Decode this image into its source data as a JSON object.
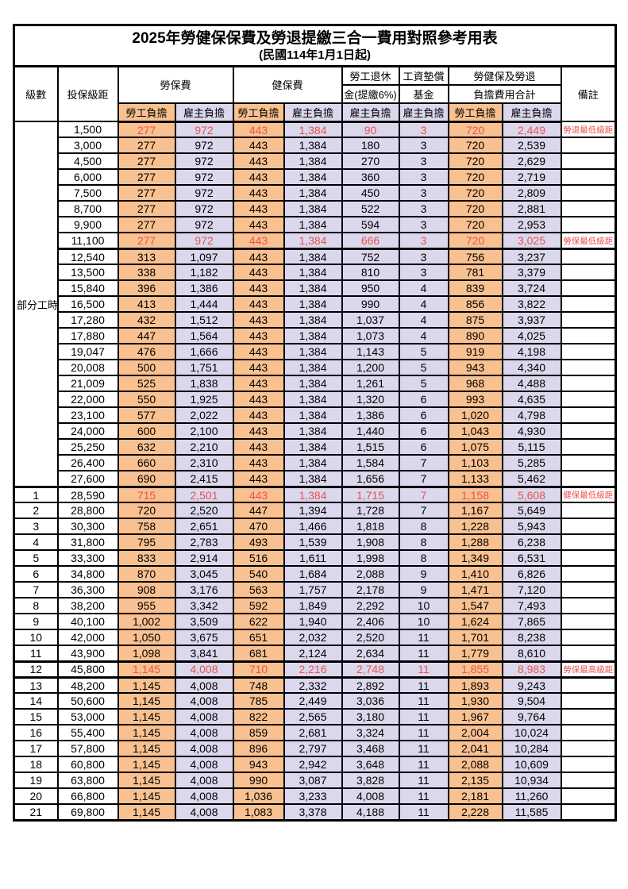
{
  "title": "2025年勞健保保費及勞退提繳三合一費用對照參考用表",
  "subtitle": "(民國114年1月1日起)",
  "header": {
    "level": "級數",
    "bracket": "投保級距",
    "labor_insurance": "勞保費",
    "health_insurance": "健保費",
    "pension_line1": "勞工退休",
    "pension_line2": "金(提繳6%)",
    "wage_fund_line1": "工資墊償",
    "wage_fund_line2": "基金",
    "total_line1": "勞健保及勞退",
    "total_line2": "負擔費用合計",
    "remark": "備註",
    "employee_share": "勞工負擔",
    "employer_share": "雇主負擔"
  },
  "part_time_label": "部分工時",
  "colors": {
    "employee_bg": "#FAC190",
    "employer_bg": "#DBD8ED",
    "highlight_text": "#E8524F",
    "border": "#000000"
  },
  "rows": [
    {
      "lv": "",
      "amt": "1,500",
      "v": [
        "277",
        "972",
        "443",
        "1,384",
        "90",
        "3",
        "720",
        "2,449"
      ],
      "rm": "勞退最低級距",
      "hl": true
    },
    {
      "lv": "",
      "amt": "3,000",
      "v": [
        "277",
        "972",
        "443",
        "1,384",
        "180",
        "3",
        "720",
        "2,539"
      ],
      "rm": ""
    },
    {
      "lv": "",
      "amt": "4,500",
      "v": [
        "277",
        "972",
        "443",
        "1,384",
        "270",
        "3",
        "720",
        "2,629"
      ],
      "rm": ""
    },
    {
      "lv": "",
      "amt": "6,000",
      "v": [
        "277",
        "972",
        "443",
        "1,384",
        "360",
        "3",
        "720",
        "2,719"
      ],
      "rm": ""
    },
    {
      "lv": "",
      "amt": "7,500",
      "v": [
        "277",
        "972",
        "443",
        "1,384",
        "450",
        "3",
        "720",
        "2,809"
      ],
      "rm": ""
    },
    {
      "lv": "",
      "amt": "8,700",
      "v": [
        "277",
        "972",
        "443",
        "1,384",
        "522",
        "3",
        "720",
        "2,881"
      ],
      "rm": ""
    },
    {
      "lv": "",
      "amt": "9,900",
      "v": [
        "277",
        "972",
        "443",
        "1,384",
        "594",
        "3",
        "720",
        "2,953"
      ],
      "rm": ""
    },
    {
      "lv": "",
      "amt": "11,100",
      "v": [
        "277",
        "972",
        "443",
        "1,384",
        "666",
        "3",
        "720",
        "3,025"
      ],
      "rm": "勞保最低級距",
      "hl": true,
      "tb": true
    },
    {
      "lv": "",
      "amt": "12,540",
      "v": [
        "313",
        "1,097",
        "443",
        "1,384",
        "752",
        "3",
        "756",
        "3,237"
      ],
      "rm": ""
    },
    {
      "lv": "",
      "amt": "13,500",
      "v": [
        "338",
        "1,182",
        "443",
        "1,384",
        "810",
        "3",
        "781",
        "3,379"
      ],
      "rm": ""
    },
    {
      "lv": "",
      "amt": "15,840",
      "v": [
        "396",
        "1,386",
        "443",
        "1,384",
        "950",
        "4",
        "839",
        "3,724"
      ],
      "rm": ""
    },
    {
      "lv": "",
      "amt": "16,500",
      "v": [
        "413",
        "1,444",
        "443",
        "1,384",
        "990",
        "4",
        "856",
        "3,822"
      ],
      "rm": ""
    },
    {
      "lv": "",
      "amt": "17,280",
      "v": [
        "432",
        "1,512",
        "443",
        "1,384",
        "1,037",
        "4",
        "875",
        "3,937"
      ],
      "rm": ""
    },
    {
      "lv": "",
      "amt": "17,880",
      "v": [
        "447",
        "1,564",
        "443",
        "1,384",
        "1,073",
        "4",
        "890",
        "4,025"
      ],
      "rm": ""
    },
    {
      "lv": "",
      "amt": "19,047",
      "v": [
        "476",
        "1,666",
        "443",
        "1,384",
        "1,143",
        "5",
        "919",
        "4,198"
      ],
      "rm": ""
    },
    {
      "lv": "",
      "amt": "20,008",
      "v": [
        "500",
        "1,751",
        "443",
        "1,384",
        "1,200",
        "5",
        "943",
        "4,340"
      ],
      "rm": ""
    },
    {
      "lv": "",
      "amt": "21,009",
      "v": [
        "525",
        "1,838",
        "443",
        "1,384",
        "1,261",
        "5",
        "968",
        "4,488"
      ],
      "rm": ""
    },
    {
      "lv": "",
      "amt": "22,000",
      "v": [
        "550",
        "1,925",
        "443",
        "1,384",
        "1,320",
        "6",
        "993",
        "4,635"
      ],
      "rm": ""
    },
    {
      "lv": "",
      "amt": "23,100",
      "v": [
        "577",
        "2,022",
        "443",
        "1,384",
        "1,386",
        "6",
        "1,020",
        "4,798"
      ],
      "rm": ""
    },
    {
      "lv": "",
      "amt": "24,000",
      "v": [
        "600",
        "2,100",
        "443",
        "1,384",
        "1,440",
        "6",
        "1,043",
        "4,930"
      ],
      "rm": ""
    },
    {
      "lv": "",
      "amt": "25,250",
      "v": [
        "632",
        "2,210",
        "443",
        "1,384",
        "1,515",
        "6",
        "1,075",
        "5,115"
      ],
      "rm": ""
    },
    {
      "lv": "",
      "amt": "26,400",
      "v": [
        "660",
        "2,310",
        "443",
        "1,384",
        "1,584",
        "7",
        "1,103",
        "5,285"
      ],
      "rm": ""
    },
    {
      "lv": "",
      "amt": "27,600",
      "v": [
        "690",
        "2,415",
        "443",
        "1,384",
        "1,656",
        "7",
        "1,133",
        "5,462"
      ],
      "rm": ""
    },
    {
      "lv": "1",
      "amt": "28,590",
      "v": [
        "715",
        "2,501",
        "443",
        "1,384",
        "1,715",
        "7",
        "1,158",
        "5,608"
      ],
      "rm": "健保最低級距",
      "hl": true,
      "tt": true
    },
    {
      "lv": "2",
      "amt": "28,800",
      "v": [
        "720",
        "2,520",
        "447",
        "1,394",
        "1,728",
        "7",
        "1,167",
        "5,649"
      ],
      "rm": ""
    },
    {
      "lv": "3",
      "amt": "30,300",
      "v": [
        "758",
        "2,651",
        "470",
        "1,466",
        "1,818",
        "8",
        "1,228",
        "5,943"
      ],
      "rm": ""
    },
    {
      "lv": "4",
      "amt": "31,800",
      "v": [
        "795",
        "2,783",
        "493",
        "1,539",
        "1,908",
        "8",
        "1,288",
        "6,238"
      ],
      "rm": ""
    },
    {
      "lv": "5",
      "amt": "33,300",
      "v": [
        "833",
        "2,914",
        "516",
        "1,611",
        "1,998",
        "8",
        "1,349",
        "6,531"
      ],
      "rm": ""
    },
    {
      "lv": "6",
      "amt": "34,800",
      "v": [
        "870",
        "3,045",
        "540",
        "1,684",
        "2,088",
        "9",
        "1,410",
        "6,826"
      ],
      "rm": ""
    },
    {
      "lv": "7",
      "amt": "36,300",
      "v": [
        "908",
        "3,176",
        "563",
        "1,757",
        "2,178",
        "9",
        "1,471",
        "7,120"
      ],
      "rm": ""
    },
    {
      "lv": "8",
      "amt": "38,200",
      "v": [
        "955",
        "3,342",
        "592",
        "1,849",
        "2,292",
        "10",
        "1,547",
        "7,493"
      ],
      "rm": ""
    },
    {
      "lv": "9",
      "amt": "40,100",
      "v": [
        "1,002",
        "3,509",
        "622",
        "1,940",
        "2,406",
        "10",
        "1,624",
        "7,865"
      ],
      "rm": ""
    },
    {
      "lv": "10",
      "amt": "42,000",
      "v": [
        "1,050",
        "3,675",
        "651",
        "2,032",
        "2,520",
        "11",
        "1,701",
        "8,238"
      ],
      "rm": ""
    },
    {
      "lv": "11",
      "amt": "43,900",
      "v": [
        "1,098",
        "3,841",
        "681",
        "2,124",
        "2,634",
        "11",
        "1,779",
        "8,610"
      ],
      "rm": ""
    },
    {
      "lv": "12",
      "amt": "45,800",
      "v": [
        "1,145",
        "4,008",
        "710",
        "2,216",
        "2,748",
        "11",
        "1,855",
        "8,983"
      ],
      "rm": "勞保最高級距",
      "hl": true,
      "tt": true,
      "tb": true
    },
    {
      "lv": "13",
      "amt": "48,200",
      "v": [
        "1,145",
        "4,008",
        "748",
        "2,332",
        "2,892",
        "11",
        "1,893",
        "9,243"
      ],
      "rm": ""
    },
    {
      "lv": "14",
      "amt": "50,600",
      "v": [
        "1,145",
        "4,008",
        "785",
        "2,449",
        "3,036",
        "11",
        "1,930",
        "9,504"
      ],
      "rm": ""
    },
    {
      "lv": "15",
      "amt": "53,000",
      "v": [
        "1,145",
        "4,008",
        "822",
        "2,565",
        "3,180",
        "11",
        "1,967",
        "9,764"
      ],
      "rm": ""
    },
    {
      "lv": "16",
      "amt": "55,400",
      "v": [
        "1,145",
        "4,008",
        "859",
        "2,681",
        "3,324",
        "11",
        "2,004",
        "10,024"
      ],
      "rm": ""
    },
    {
      "lv": "17",
      "amt": "57,800",
      "v": [
        "1,145",
        "4,008",
        "896",
        "2,797",
        "3,468",
        "11",
        "2,041",
        "10,284"
      ],
      "rm": ""
    },
    {
      "lv": "18",
      "amt": "60,800",
      "v": [
        "1,145",
        "4,008",
        "943",
        "2,942",
        "3,648",
        "11",
        "2,088",
        "10,609"
      ],
      "rm": ""
    },
    {
      "lv": "19",
      "amt": "63,800",
      "v": [
        "1,145",
        "4,008",
        "990",
        "3,087",
        "3,828",
        "11",
        "2,135",
        "10,934"
      ],
      "rm": ""
    },
    {
      "lv": "20",
      "amt": "66,800",
      "v": [
        "1,145",
        "4,008",
        "1,036",
        "3,233",
        "4,008",
        "11",
        "2,181",
        "11,260"
      ],
      "rm": ""
    },
    {
      "lv": "21",
      "amt": "69,800",
      "v": [
        "1,145",
        "4,008",
        "1,083",
        "3,378",
        "4,188",
        "11",
        "2,228",
        "11,585"
      ],
      "rm": ""
    }
  ]
}
